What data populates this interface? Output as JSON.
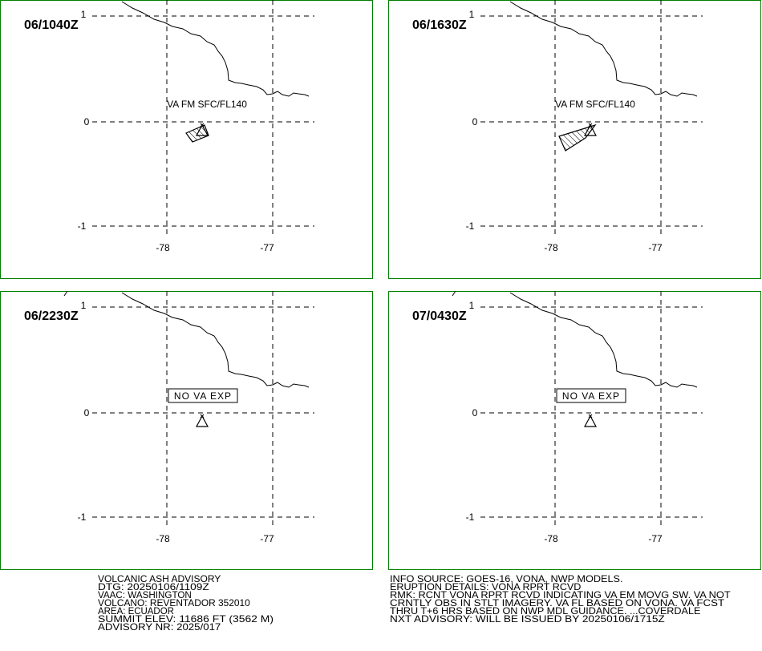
{
  "grid": {
    "lat_labels": [
      "1",
      "0",
      "-1"
    ],
    "lon_labels": [
      "-78",
      "-77"
    ]
  },
  "panels": [
    {
      "time": "06/1040Z",
      "label": "VA FM SFC/FL140"
    },
    {
      "time": "06/1630Z",
      "label": "VA FM SFC/FL140"
    },
    {
      "time": "06/2230Z",
      "box_label": "NO VA EXP"
    },
    {
      "time": "07/0430Z",
      "box_label": "NO VA EXP"
    }
  ],
  "advisory_left": [
    "VOLCANIC ASH ADVISORY",
    "DTG: 20250106/1109Z",
    "VAAC: WASHINGTON",
    "VOLCANO: REVENTADOR 352010",
    "AREA: ECUADOR",
    "SUMMIT ELEV: 11686 FT (3562 M)",
    "ADVISORY NR: 2025/017"
  ],
  "advisory_right": [
    "INFO SOURCE: GOES-16, VONA, NWP MODELS.",
    "ERUPTION DETAILS: VONA RPRT RCVD",
    "RMK: RCNT VONA RPRT RCVD INDICATING VA EM MOVG SW. VA NOT",
    "CRNTLY OBS IN STLT IMAGERY. VA FL BASED ON VONA. VA FCST",
    "THRU T+6 HRS BASED ON NWP MDL GUIDANCE. ...COVERDALE",
    "NXT ADVISORY: WILL BE ISSUED BY 20250106/1715Z"
  ]
}
